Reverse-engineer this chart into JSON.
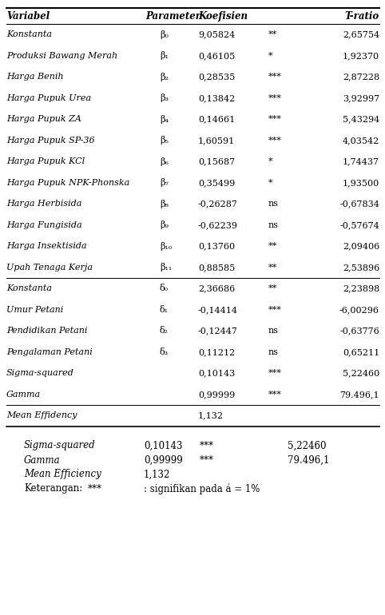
{
  "headers": [
    "Variabel",
    "Parameter",
    "Koefisien",
    "",
    "T-ratio"
  ],
  "rows": [
    [
      "Konstanta",
      "β₀",
      "9,05824",
      "**",
      "2,65754"
    ],
    [
      "Produksi Bawang Merah",
      "β₁",
      "0,46105",
      "*",
      "1,92370"
    ],
    [
      "Harga Benih",
      "β₂",
      "0,28535",
      "***",
      "2,87228"
    ],
    [
      "Harga Pupuk Urea",
      "β₃",
      "0,13842",
      "***",
      "3,92997"
    ],
    [
      "Harga Pupuk ZA",
      "β₄",
      "0,14661",
      "***",
      "5,43294"
    ],
    [
      "Harga Pupuk SP-36",
      "β₅",
      "1,60591",
      "***",
      "4,03542"
    ],
    [
      "Harga Pupuk KCl",
      "β₆",
      "0,15687",
      "*",
      "1,74437"
    ],
    [
      "Harga Pupuk NPK-Phonska",
      "β₇",
      "0,35499",
      "*",
      "1,93500"
    ],
    [
      "Harga Herbisida",
      "β₈",
      "-0,26287",
      "ns",
      "-0,67834"
    ],
    [
      "Harga Fungisida",
      "β₉",
      "-0,62239",
      "ns",
      "-0,57674"
    ],
    [
      "Harga Insektisida",
      "β₁₀",
      "0,13760",
      "**",
      "2,09406"
    ],
    [
      "Upah Tenaga Kerja",
      "β₁₁",
      "0,88585",
      "**",
      "2,53896"
    ],
    [
      "Konstanta",
      "δ₀",
      "2,36686",
      "**",
      "2,23898"
    ],
    [
      "Umur Petani",
      "δ₁",
      "-0,14414",
      "***",
      "-6,00296"
    ],
    [
      "Pendidikan Petani",
      "δ₂",
      "-0,12447",
      "ns",
      "-0,63776"
    ],
    [
      "Pengalaman Petani",
      "δ₃",
      "0,11212",
      "ns",
      "0,65211"
    ],
    [
      "Sigma-squared",
      "",
      "0,10143",
      "***",
      "5,22460"
    ],
    [
      "Gamma",
      "",
      "0,99999",
      "***",
      "79.496,1"
    ],
    [
      "Mean Effidency",
      "",
      "1,132",
      "",
      ""
    ]
  ],
  "separator_after_row": 11,
  "italic_rows_in_table": [
    16,
    17,
    18
  ],
  "footer_lines": [
    [
      "Sigma-squared",
      "0,10143",
      "***",
      "5,22460"
    ],
    [
      "Gamma",
      "0,99999",
      "***",
      "79.496,1"
    ],
    [
      "Mean Efficiency",
      "1,132",
      "",
      ""
    ],
    [
      "Keterangan:",
      "***",
      ": signifikan pada á = 1%",
      ""
    ]
  ]
}
